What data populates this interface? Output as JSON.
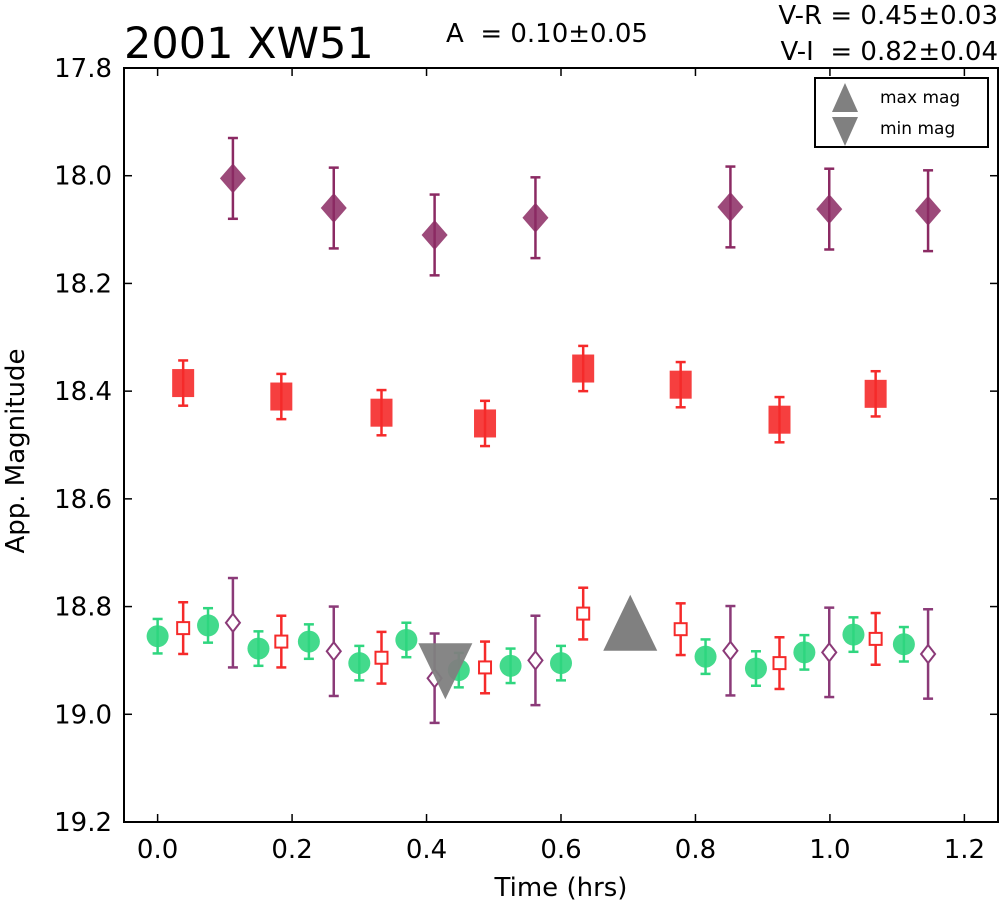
{
  "chart_data": {
    "type": "scatter",
    "title": "2001 XW51",
    "annotations": {
      "amplitude": "A  = 0.10±0.05",
      "color_vr": "V-R = 0.45±0.03",
      "color_vi": "V-I  = 0.82±0.04"
    },
    "xlabel": "Time (hrs)",
    "ylabel": "App. Magnitude",
    "xlim": [
      -0.05,
      1.25
    ],
    "ylim": [
      19.2,
      17.8
    ],
    "y_inverted": true,
    "xticks": [
      "0.0",
      "0.2",
      "0.4",
      "0.6",
      "0.8",
      "1.0",
      "1.2"
    ],
    "yticks": [
      "17.8",
      "18.0",
      "18.2",
      "18.4",
      "18.6",
      "18.8",
      "19.0",
      "19.2"
    ],
    "grid": false,
    "legend": {
      "placement": "top-right",
      "entries": [
        {
          "label": "max mag",
          "marker": "triangle-up",
          "color": "#808080"
        },
        {
          "label": "min mag",
          "marker": "triangle-down",
          "color": "#808080"
        }
      ]
    },
    "colors": {
      "purple": "#8b2a63",
      "purple_open": "#8b3a78",
      "red": "#f52a2a",
      "green": "#2fd67f",
      "gray": "#808080"
    },
    "series": [
      {
        "marker": "diamond-filled",
        "color": "#8b2a63",
        "x": [
          0.112,
          0.262,
          0.412,
          0.562,
          0.852,
          0.999,
          1.146
        ],
        "y": [
          18.005,
          18.06,
          18.11,
          18.078,
          18.058,
          18.062,
          18.065
        ],
        "err": [
          0.075,
          0.075,
          0.075,
          0.075,
          0.075,
          0.075,
          0.075
        ]
      },
      {
        "marker": "square-filled",
        "color": "#f52a2a",
        "x": [
          0.038,
          0.184,
          0.333,
          0.487,
          0.633,
          0.778,
          0.925,
          1.068
        ],
        "y": [
          18.385,
          18.41,
          18.44,
          18.46,
          18.358,
          18.388,
          18.453,
          18.405
        ],
        "err": [
          0.042,
          0.042,
          0.042,
          0.042,
          0.042,
          0.042,
          0.042,
          0.042
        ]
      },
      {
        "marker": "circle-filled",
        "color": "#2fd67f",
        "x": [
          0.0,
          0.075,
          0.15,
          0.225,
          0.3,
          0.37,
          0.448,
          0.525,
          0.6,
          0.815,
          0.89,
          0.962,
          1.035,
          1.11
        ],
        "y": [
          18.855,
          18.835,
          18.878,
          18.865,
          18.905,
          18.862,
          18.918,
          18.91,
          18.905,
          18.893,
          18.915,
          18.885,
          18.852,
          18.87
        ],
        "err": [
          0.032,
          0.032,
          0.032,
          0.032,
          0.032,
          0.032,
          0.032,
          0.032,
          0.032,
          0.032,
          0.032,
          0.032,
          0.032,
          0.032
        ]
      },
      {
        "marker": "square-open",
        "color": "#f52a2a",
        "x": [
          0.038,
          0.184,
          0.333,
          0.487,
          0.633,
          0.778,
          0.925,
          1.068
        ],
        "y": [
          18.84,
          18.865,
          18.895,
          18.913,
          18.813,
          18.842,
          18.905,
          18.86
        ],
        "err": [
          0.048,
          0.048,
          0.048,
          0.048,
          0.048,
          0.048,
          0.048,
          0.048
        ]
      },
      {
        "marker": "diamond-open",
        "color": "#8b3a78",
        "x": [
          0.112,
          0.262,
          0.412,
          0.562,
          0.852,
          0.999,
          1.146
        ],
        "y": [
          18.83,
          18.883,
          18.933,
          18.9,
          18.882,
          18.885,
          18.888
        ],
        "err": [
          0.083,
          0.083,
          0.083,
          0.083,
          0.083,
          0.083,
          0.083
        ]
      },
      {
        "marker": "triangle-up",
        "color": "#808080",
        "x": [
          0.703
        ],
        "y": [
          18.83
        ],
        "err": []
      },
      {
        "marker": "triangle-down",
        "color": "#808080",
        "x": [
          0.428
        ],
        "y": [
          18.92
        ],
        "err": []
      }
    ]
  }
}
